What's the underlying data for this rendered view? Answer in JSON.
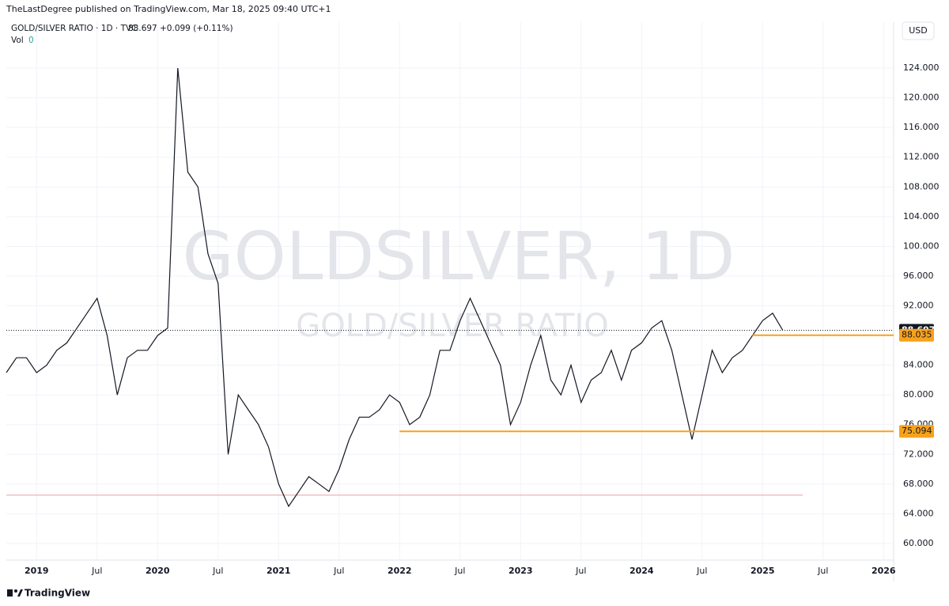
{
  "header": {
    "publisher": "TheLastDegree published on TradingView.com, Mar 18, 2025 09:40 UTC+1",
    "symbol": "GOLD/SILVER RATIO · 1D · TVC",
    "last": "88.697",
    "change": "+0.099 (+0.11%)",
    "vol_label": "Vol",
    "vol_value": "0",
    "currency": "USD"
  },
  "watermark": {
    "main": "GOLDSILVER, 1D",
    "sub": "GOLD/SILVER RATIO"
  },
  "footer": {
    "brand": "TradingView"
  },
  "chart_data": {
    "type": "line",
    "x": [
      "2018-10",
      "2018-11",
      "2018-12",
      "2019-01",
      "2019-02",
      "2019-03",
      "2019-04",
      "2019-05",
      "2019-06",
      "2019-07",
      "2019-08",
      "2019-09",
      "2019-10",
      "2019-11",
      "2019-12",
      "2020-01",
      "2020-02",
      "2020-03",
      "2020-04",
      "2020-05",
      "2020-06",
      "2020-07",
      "2020-08",
      "2020-09",
      "2020-10",
      "2020-11",
      "2020-12",
      "2021-01",
      "2021-02",
      "2021-03",
      "2021-04",
      "2021-05",
      "2021-06",
      "2021-07",
      "2021-08",
      "2021-09",
      "2021-10",
      "2021-11",
      "2021-12",
      "2022-01",
      "2022-02",
      "2022-03",
      "2022-04",
      "2022-05",
      "2022-06",
      "2022-07",
      "2022-08",
      "2022-09",
      "2022-10",
      "2022-11",
      "2022-12",
      "2023-01",
      "2023-02",
      "2023-03",
      "2023-04",
      "2023-05",
      "2023-06",
      "2023-07",
      "2023-08",
      "2023-09",
      "2023-10",
      "2023-11",
      "2023-12",
      "2024-01",
      "2024-02",
      "2024-03",
      "2024-04",
      "2024-05",
      "2024-06",
      "2024-07",
      "2024-08",
      "2024-09",
      "2024-10",
      "2024-11",
      "2024-12",
      "2025-01",
      "2025-02",
      "2025-03"
    ],
    "series": [
      {
        "name": "GOLD/SILVER RATIO",
        "color": "#131722",
        "values": [
          83,
          85,
          85,
          83,
          84,
          86,
          87,
          89,
          91,
          93,
          88,
          80,
          85,
          86,
          86,
          88,
          89,
          124,
          110,
          108,
          99,
          95,
          72,
          80,
          78,
          76,
          73,
          68,
          65,
          67,
          69,
          68,
          67,
          70,
          74,
          77,
          77,
          78,
          80,
          79,
          76,
          77,
          80,
          86,
          86,
          90,
          93,
          90,
          87,
          84,
          76,
          79,
          84,
          88,
          82,
          80,
          84,
          79,
          82,
          83,
          86,
          82,
          86,
          87,
          89,
          90,
          86,
          80,
          74,
          80,
          86,
          83,
          85,
          86,
          88,
          90,
          91,
          88.697
        ]
      }
    ],
    "xlim": [
      "2018-10",
      "2026-02"
    ],
    "xticks": [
      {
        "value": "2019-01",
        "label": "2019"
      },
      {
        "value": "2019-07",
        "label": "Jul"
      },
      {
        "value": "2020-01",
        "label": "2020"
      },
      {
        "value": "2020-07",
        "label": "Jul"
      },
      {
        "value": "2021-01",
        "label": "2021"
      },
      {
        "value": "2021-07",
        "label": "Jul"
      },
      {
        "value": "2022-01",
        "label": "2022"
      },
      {
        "value": "2022-07",
        "label": "Jul"
      },
      {
        "value": "2023-01",
        "label": "2023"
      },
      {
        "value": "2023-07",
        "label": "Jul"
      },
      {
        "value": "2024-01",
        "label": "2024"
      },
      {
        "value": "2024-07",
        "label": "Jul"
      },
      {
        "value": "2025-01",
        "label": "2025"
      },
      {
        "value": "2025-07",
        "label": "Jul"
      },
      {
        "value": "2026-01",
        "label": "2026"
      }
    ],
    "ylim": [
      57.76,
      130.18
    ],
    "yticks": [
      {
        "value": 60,
        "label": "60.000"
      },
      {
        "value": 64,
        "label": "64.000"
      },
      {
        "value": 68,
        "label": "68.000"
      },
      {
        "value": 72,
        "label": "72.000"
      },
      {
        "value": 76,
        "label": "76.000"
      },
      {
        "value": 80,
        "label": "80.000"
      },
      {
        "value": 84,
        "label": "84.000"
      },
      {
        "value": 88,
        "label": "88.000"
      },
      {
        "value": 92,
        "label": "92.000"
      },
      {
        "value": 96,
        "label": "96.000"
      },
      {
        "value": 100,
        "label": "100.000"
      },
      {
        "value": 104,
        "label": "104.000"
      },
      {
        "value": 108,
        "label": "108.000"
      },
      {
        "value": 112,
        "label": "112.000"
      },
      {
        "value": 116,
        "label": "116.000"
      },
      {
        "value": 120,
        "label": "120.000"
      },
      {
        "value": 124,
        "label": "124.000"
      }
    ],
    "grid": true,
    "last_price": 88.697,
    "levels": [
      {
        "value": 88.035,
        "start": "2024-12",
        "color": "#f7a21b"
      },
      {
        "value": 75.094,
        "start": "2022-01",
        "color": "#f7a21b"
      }
    ],
    "baseline": {
      "value": 66.5,
      "start": "2018-10",
      "end": "2025-05",
      "color": "#e8a0a0"
    }
  }
}
